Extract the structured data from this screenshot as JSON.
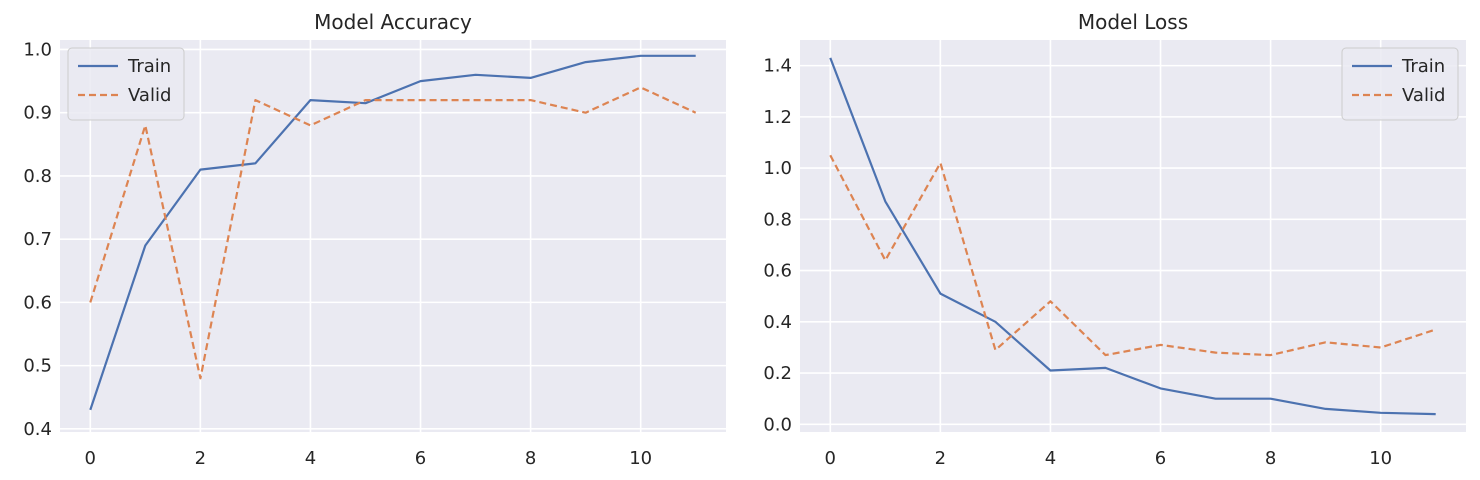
{
  "chart_data": [
    {
      "type": "line",
      "title": "Model Accuracy",
      "xlabel": "",
      "ylabel": "",
      "x": [
        0,
        1,
        2,
        3,
        4,
        5,
        6,
        7,
        8,
        9,
        10,
        11
      ],
      "xlim": [
        -0.55,
        11.55
      ],
      "ylim": [
        0.395,
        1.015
      ],
      "xticks": [
        0,
        2,
        4,
        6,
        8,
        10
      ],
      "yticks": [
        0.4,
        0.5,
        0.6,
        0.7,
        0.8,
        0.9,
        1.0
      ],
      "ytick_labels": [
        "0.4",
        "0.5",
        "0.6",
        "0.7",
        "0.8",
        "0.9",
        "1.0"
      ],
      "grid": true,
      "legend_position": "top-left",
      "series": [
        {
          "name": "Train",
          "color": "#4c72b0",
          "style": "solid",
          "values": [
            0.43,
            0.69,
            0.81,
            0.82,
            0.92,
            0.915,
            0.95,
            0.96,
            0.955,
            0.98,
            0.99,
            0.99
          ]
        },
        {
          "name": "Valid",
          "color": "#dd8452",
          "style": "dashed",
          "values": [
            0.6,
            0.88,
            0.48,
            0.92,
            0.88,
            0.92,
            0.92,
            0.92,
            0.92,
            0.9,
            0.94,
            0.9
          ]
        }
      ]
    },
    {
      "type": "line",
      "title": "Model Loss",
      "xlabel": "",
      "ylabel": "",
      "x": [
        0,
        1,
        2,
        3,
        4,
        5,
        6,
        7,
        8,
        9,
        10,
        11
      ],
      "xlim": [
        -0.55,
        11.55
      ],
      "ylim": [
        -0.03,
        1.5
      ],
      "xticks": [
        0,
        2,
        4,
        6,
        8,
        10
      ],
      "yticks": [
        0.0,
        0.2,
        0.4,
        0.6,
        0.8,
        1.0,
        1.2,
        1.4
      ],
      "ytick_labels": [
        "0.0",
        "0.2",
        "0.4",
        "0.6",
        "0.8",
        "1.0",
        "1.2",
        "1.4"
      ],
      "grid": true,
      "legend_position": "top-right",
      "series": [
        {
          "name": "Train",
          "color": "#4c72b0",
          "style": "solid",
          "values": [
            1.43,
            0.87,
            0.51,
            0.4,
            0.21,
            0.22,
            0.14,
            0.1,
            0.1,
            0.06,
            0.045,
            0.04
          ]
        },
        {
          "name": "Valid",
          "color": "#dd8452",
          "style": "dashed",
          "values": [
            1.05,
            0.64,
            1.02,
            0.29,
            0.48,
            0.27,
            0.31,
            0.28,
            0.27,
            0.32,
            0.3,
            0.37
          ]
        }
      ]
    }
  ]
}
